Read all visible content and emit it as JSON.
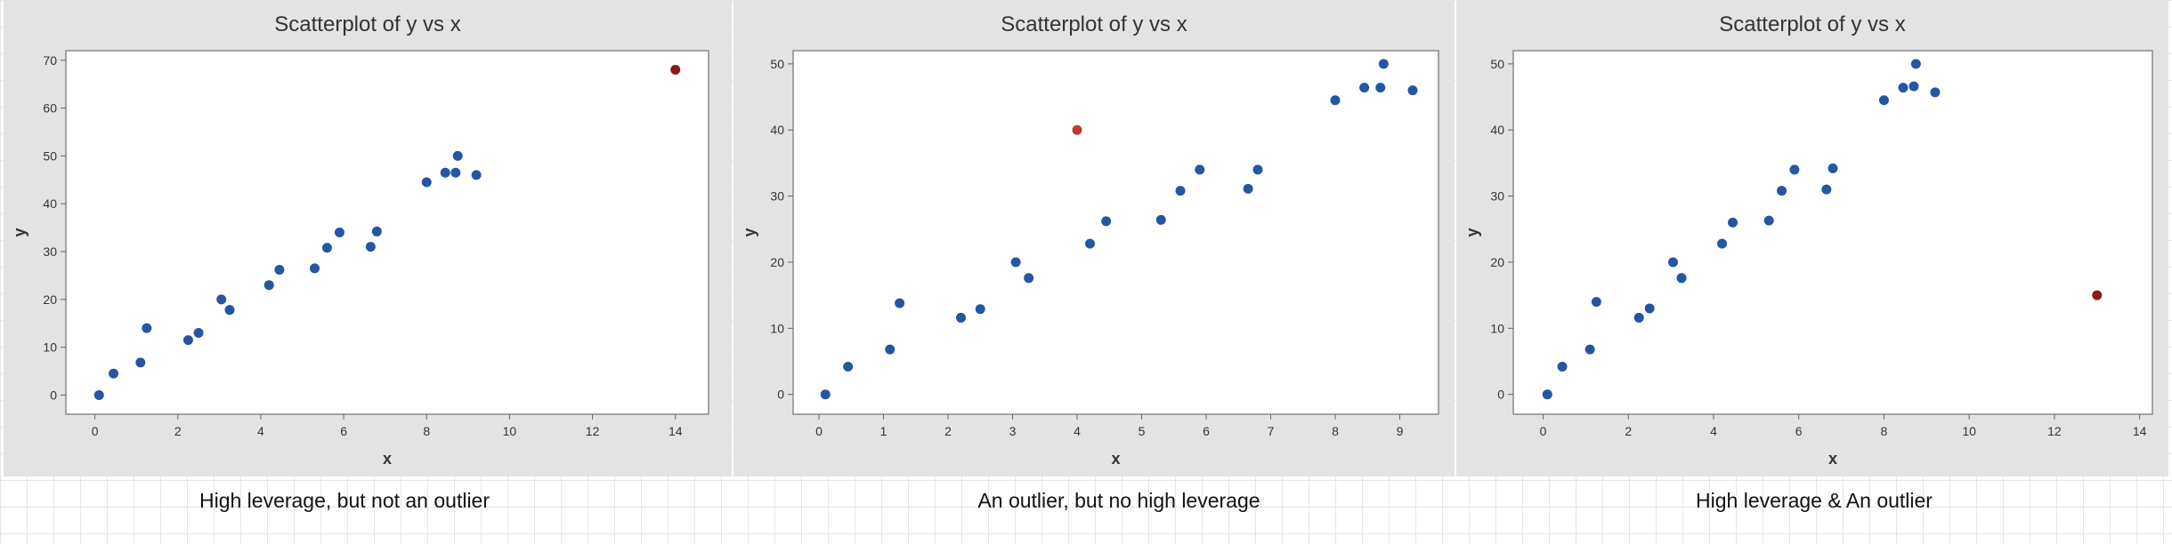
{
  "chart_data": [
    {
      "type": "scatter",
      "title": "Scatterplot of y vs x",
      "xlabel": "x",
      "ylabel": "y",
      "xlim": [
        -0.7,
        14.8
      ],
      "ylim": [
        -4,
        72
      ],
      "xticks": [
        0,
        2,
        4,
        6,
        8,
        10,
        12,
        14
      ],
      "yticks": [
        0,
        10,
        20,
        30,
        40,
        50,
        60,
        70
      ],
      "grid": false,
      "point_color": "#2456a4",
      "highlight_color": "#8b1a1a",
      "x": [
        0.1,
        0.45,
        1.1,
        1.25,
        2.25,
        2.5,
        3.05,
        3.25,
        4.2,
        4.45,
        5.3,
        5.6,
        5.9,
        6.65,
        6.8,
        8.0,
        8.45,
        8.7,
        8.75,
        9.2
      ],
      "y": [
        0,
        4.5,
        6.8,
        14,
        11.5,
        13,
        20,
        17.8,
        23,
        26.2,
        26.5,
        30.8,
        34,
        31,
        34.2,
        44.5,
        46.5,
        46.5,
        50,
        46
      ],
      "highlight": {
        "x": 14,
        "y": 68
      }
    },
    {
      "type": "scatter",
      "title": "Scatterplot of y vs x",
      "xlabel": "x",
      "ylabel": "y",
      "xlim": [
        -0.4,
        9.6
      ],
      "ylim": [
        -3,
        52
      ],
      "xticks": [
        0,
        1,
        2,
        3,
        4,
        5,
        6,
        7,
        8,
        9
      ],
      "yticks": [
        0,
        10,
        20,
        30,
        40,
        50
      ],
      "grid": false,
      "point_color": "#2456a4",
      "highlight_color": "#c0392b",
      "x": [
        0.1,
        0.45,
        1.1,
        1.25,
        2.2,
        2.5,
        3.05,
        3.25,
        4.2,
        4.45,
        5.3,
        5.6,
        5.9,
        6.65,
        6.8,
        8.0,
        8.45,
        8.7,
        8.75,
        9.2
      ],
      "y": [
        0,
        4.2,
        6.8,
        13.8,
        11.6,
        12.9,
        20,
        17.6,
        22.8,
        26.2,
        26.4,
        30.8,
        34,
        31.1,
        34,
        44.5,
        46.4,
        46.4,
        50,
        46
      ],
      "highlight": {
        "x": 4,
        "y": 40
      }
    },
    {
      "type": "scatter",
      "title": "Scatterplot of y vs x",
      "xlabel": "x",
      "ylabel": "y",
      "xlim": [
        -0.7,
        14.3
      ],
      "ylim": [
        -3,
        52
      ],
      "xticks": [
        0,
        2,
        4,
        6,
        8,
        10,
        12,
        14
      ],
      "yticks": [
        0,
        10,
        20,
        30,
        40,
        50
      ],
      "grid": false,
      "point_color": "#2456a4",
      "highlight_color": "#8b1a1a",
      "x": [
        0.1,
        0.45,
        1.1,
        1.25,
        2.25,
        2.5,
        3.05,
        3.25,
        4.2,
        4.45,
        5.3,
        5.6,
        5.9,
        6.65,
        6.8,
        8.0,
        8.45,
        8.7,
        8.75,
        9.2
      ],
      "y": [
        0,
        4.2,
        6.8,
        14,
        11.6,
        13,
        20,
        17.6,
        22.8,
        26,
        26.3,
        30.8,
        34,
        31,
        34.2,
        44.5,
        46.4,
        46.6,
        50,
        45.7
      ],
      "highlight": {
        "x": 13,
        "y": 15
      }
    }
  ],
  "captions": [
    "High leverage, but not an outlier",
    "An outlier, but no high leverage",
    "High leverage & An outlier"
  ]
}
